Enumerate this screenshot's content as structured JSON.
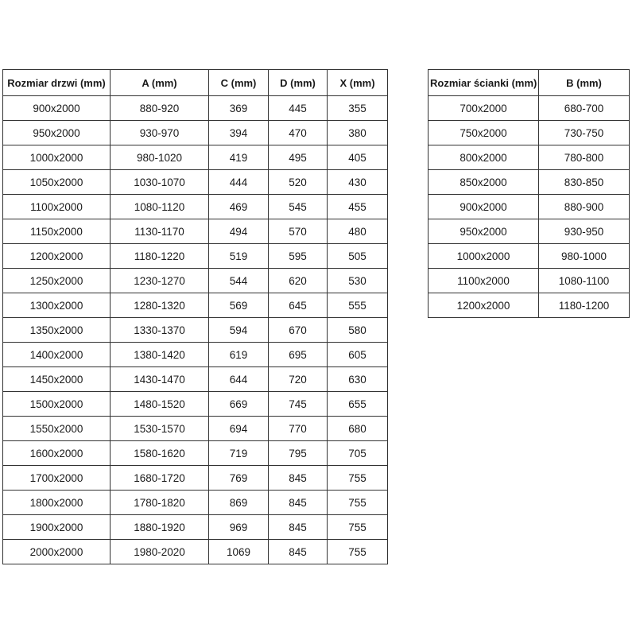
{
  "colors": {
    "background": "#ffffff",
    "border": "#333333",
    "text": "#1a1a1a"
  },
  "chart_data": [
    {
      "type": "table",
      "name": "door-sizes",
      "title": "Rozmiar drzwi (mm)",
      "columns": [
        "Rozmiar drzwi (mm)",
        "A (mm)",
        "C (mm)",
        "D (mm)",
        "X (mm)"
      ],
      "rows": [
        [
          "900x2000",
          "880-920",
          "369",
          "445",
          "355"
        ],
        [
          "950x2000",
          "930-970",
          "394",
          "470",
          "380"
        ],
        [
          "1000x2000",
          "980-1020",
          "419",
          "495",
          "405"
        ],
        [
          "1050x2000",
          "1030-1070",
          "444",
          "520",
          "430"
        ],
        [
          "1100x2000",
          "1080-1120",
          "469",
          "545",
          "455"
        ],
        [
          "1150x2000",
          "1130-1170",
          "494",
          "570",
          "480"
        ],
        [
          "1200x2000",
          "1180-1220",
          "519",
          "595",
          "505"
        ],
        [
          "1250x2000",
          "1230-1270",
          "544",
          "620",
          "530"
        ],
        [
          "1300x2000",
          "1280-1320",
          "569",
          "645",
          "555"
        ],
        [
          "1350x2000",
          "1330-1370",
          "594",
          "670",
          "580"
        ],
        [
          "1400x2000",
          "1380-1420",
          "619",
          "695",
          "605"
        ],
        [
          "1450x2000",
          "1430-1470",
          "644",
          "720",
          "630"
        ],
        [
          "1500x2000",
          "1480-1520",
          "669",
          "745",
          "655"
        ],
        [
          "1550x2000",
          "1530-1570",
          "694",
          "770",
          "680"
        ],
        [
          "1600x2000",
          "1580-1620",
          "719",
          "795",
          "705"
        ],
        [
          "1700x2000",
          "1680-1720",
          "769",
          "845",
          "755"
        ],
        [
          "1800x2000",
          "1780-1820",
          "869",
          "845",
          "755"
        ],
        [
          "1900x2000",
          "1880-1920",
          "969",
          "845",
          "755"
        ],
        [
          "2000x2000",
          "1980-2020",
          "1069",
          "845",
          "755"
        ]
      ]
    },
    {
      "type": "table",
      "name": "wall-panel-sizes",
      "title": "Rozmiar ścianki (mm)",
      "columns": [
        "Rozmiar ścianki (mm)",
        "B (mm)"
      ],
      "rows": [
        [
          "700x2000",
          "680-700"
        ],
        [
          "750x2000",
          "730-750"
        ],
        [
          "800x2000",
          "780-800"
        ],
        [
          "850x2000",
          "830-850"
        ],
        [
          "900x2000",
          "880-900"
        ],
        [
          "950x2000",
          "930-950"
        ],
        [
          "1000x2000",
          "980-1000"
        ],
        [
          "1100x2000",
          "1080-1100"
        ],
        [
          "1200x2000",
          "1180-1200"
        ]
      ]
    }
  ]
}
